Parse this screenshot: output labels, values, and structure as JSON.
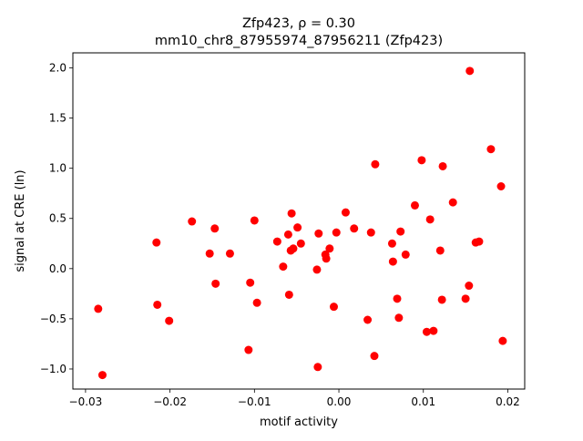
{
  "chart_data": {
    "type": "scatter",
    "title_line1": "Zfp423, ρ = 0.30",
    "title_line2": "mm10_chr8_87955974_87956211 (Zfp423)",
    "xlabel": "motif activity",
    "ylabel": "signal at CRE (ln)",
    "xlim": [
      -0.0315,
      0.022
    ],
    "ylim": [
      -1.2,
      2.15
    ],
    "xticks": [
      {
        "value": -0.03,
        "label": "−0.03"
      },
      {
        "value": -0.02,
        "label": "−0.02"
      },
      {
        "value": -0.01,
        "label": "−0.01"
      },
      {
        "value": 0.0,
        "label": "0.00"
      },
      {
        "value": 0.01,
        "label": "0.01"
      },
      {
        "value": 0.02,
        "label": "0.02"
      }
    ],
    "yticks": [
      {
        "value": -1.0,
        "label": "−1.0"
      },
      {
        "value": -0.5,
        "label": "−0.5"
      },
      {
        "value": 0.0,
        "label": "0.0"
      },
      {
        "value": 0.5,
        "label": "0.5"
      },
      {
        "value": 1.0,
        "label": "1.0"
      },
      {
        "value": 1.5,
        "label": "1.5"
      },
      {
        "value": 2.0,
        "label": "2.0"
      }
    ],
    "marker_color": "#ff0000",
    "grid": false,
    "points": [
      {
        "x": -0.0285,
        "y": -0.4
      },
      {
        "x": -0.028,
        "y": -1.06
      },
      {
        "x": -0.0216,
        "y": 0.26
      },
      {
        "x": -0.0215,
        "y": -0.36
      },
      {
        "x": -0.0201,
        "y": -0.52
      },
      {
        "x": -0.0174,
        "y": 0.47
      },
      {
        "x": -0.0153,
        "y": 0.15
      },
      {
        "x": -0.0147,
        "y": 0.4
      },
      {
        "x": -0.0146,
        "y": -0.15
      },
      {
        "x": -0.0129,
        "y": 0.15
      },
      {
        "x": -0.0107,
        "y": -0.81
      },
      {
        "x": -0.0105,
        "y": -0.14
      },
      {
        "x": -0.01,
        "y": 0.48
      },
      {
        "x": -0.0097,
        "y": -0.34
      },
      {
        "x": -0.0073,
        "y": 0.27
      },
      {
        "x": -0.0066,
        "y": 0.02
      },
      {
        "x": -0.006,
        "y": 0.34
      },
      {
        "x": -0.0059,
        "y": -0.26
      },
      {
        "x": -0.0057,
        "y": 0.18
      },
      {
        "x": -0.0056,
        "y": 0.55
      },
      {
        "x": -0.0054,
        "y": 0.2
      },
      {
        "x": -0.0049,
        "y": 0.41
      },
      {
        "x": -0.0045,
        "y": 0.25
      },
      {
        "x": -0.0026,
        "y": -0.01
      },
      {
        "x": -0.0025,
        "y": -0.98
      },
      {
        "x": -0.0024,
        "y": 0.35
      },
      {
        "x": -0.0016,
        "y": 0.14
      },
      {
        "x": -0.0015,
        "y": 0.1
      },
      {
        "x": -0.0011,
        "y": 0.2
      },
      {
        "x": -0.0006,
        "y": -0.38
      },
      {
        "x": -0.0003,
        "y": 0.36
      },
      {
        "x": 0.0008,
        "y": 0.56
      },
      {
        "x": 0.0018,
        "y": 0.4
      },
      {
        "x": 0.0034,
        "y": -0.51
      },
      {
        "x": 0.0038,
        "y": 0.36
      },
      {
        "x": 0.0042,
        "y": -0.87
      },
      {
        "x": 0.0043,
        "y": 1.04
      },
      {
        "x": 0.0063,
        "y": 0.25
      },
      {
        "x": 0.0064,
        "y": 0.07
      },
      {
        "x": 0.0069,
        "y": -0.3
      },
      {
        "x": 0.0071,
        "y": -0.49
      },
      {
        "x": 0.0073,
        "y": 0.37
      },
      {
        "x": 0.0079,
        "y": 0.14
      },
      {
        "x": 0.009,
        "y": 0.63
      },
      {
        "x": 0.0098,
        "y": 1.08
      },
      {
        "x": 0.0104,
        "y": -0.63
      },
      {
        "x": 0.0108,
        "y": 0.49
      },
      {
        "x": 0.0112,
        "y": -0.62
      },
      {
        "x": 0.012,
        "y": 0.18
      },
      {
        "x": 0.0122,
        "y": -0.31
      },
      {
        "x": 0.0123,
        "y": 1.02
      },
      {
        "x": 0.0135,
        "y": 0.66
      },
      {
        "x": 0.015,
        "y": -0.3
      },
      {
        "x": 0.0154,
        "y": -0.17
      },
      {
        "x": 0.0155,
        "y": 1.97
      },
      {
        "x": 0.0162,
        "y": 0.26
      },
      {
        "x": 0.0166,
        "y": 0.27
      },
      {
        "x": 0.018,
        "y": 1.19
      },
      {
        "x": 0.0192,
        "y": 0.82
      },
      {
        "x": 0.0194,
        "y": -0.72
      }
    ]
  }
}
